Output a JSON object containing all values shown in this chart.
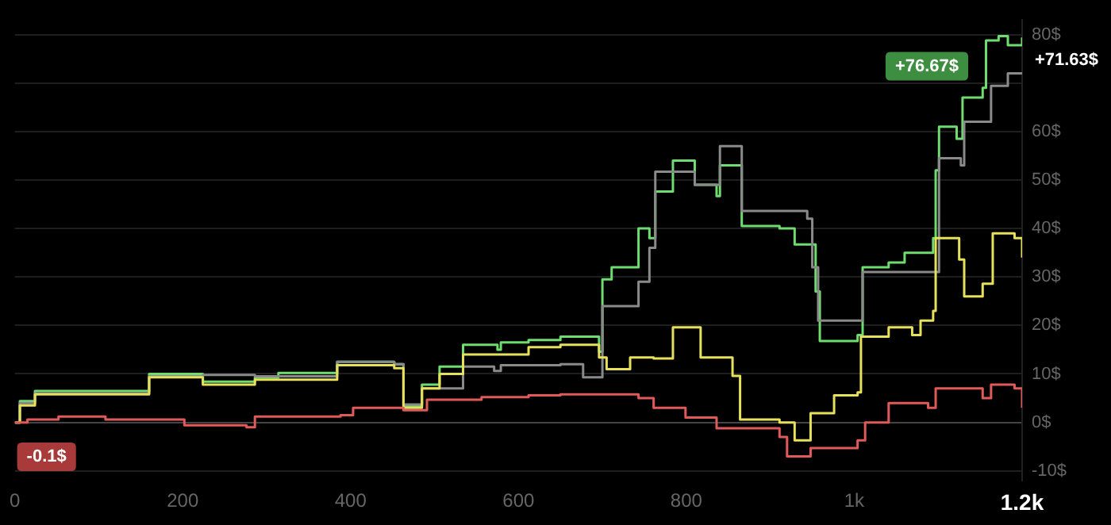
{
  "chart_data": {
    "type": "step",
    "series": [
      {
        "color": "#e05a5a",
        "x": [
          0,
          15,
          52,
          108,
          202,
          276,
          286,
          388,
          403,
          463,
          491,
          556,
          612,
          650,
          743,
          761,
          799,
          836,
          911,
          920,
          948,
          1004,
          1013,
          1041,
          1088,
          1097,
          1153,
          1163,
          1191,
          1200
        ],
        "values": [
          0,
          0.6,
          1.2,
          0.6,
          -0.6,
          -1,
          1.2,
          1.5,
          3,
          2.5,
          4.7,
          5.2,
          5.6,
          5.8,
          5,
          3,
          1,
          -1.2,
          -3,
          -7,
          -5.3,
          -3.7,
          0,
          4,
          3,
          7,
          5,
          7.8,
          7,
          3
        ]
      },
      {
        "color": "#e6e05a",
        "x": [
          0,
          6,
          24,
          160,
          224,
          286,
          384,
          452,
          463,
          485,
          506,
          534,
          612,
          650,
          696,
          705,
          733,
          761,
          784,
          817,
          855,
          864,
          911,
          929,
          948,
          976,
          1004,
          1008,
          1041,
          1069,
          1079,
          1094,
          1097,
          1125,
          1131,
          1153,
          1165,
          1191,
          1200
        ],
        "values": [
          0,
          3.5,
          5.8,
          9.3,
          7.8,
          8.8,
          11.8,
          11.2,
          3,
          7,
          10,
          14,
          15.5,
          16,
          13.4,
          11,
          13.4,
          13.2,
          19.6,
          13.4,
          9.6,
          0.6,
          0,
          -3.7,
          1.9,
          5.6,
          6.2,
          17.7,
          19.6,
          18,
          21,
          23,
          38,
          33.6,
          26,
          28.6,
          39,
          38,
          34
        ]
      },
      {
        "color": "#8a8a8a",
        "x": [
          0,
          6,
          24,
          160,
          224,
          286,
          384,
          452,
          463,
          485,
          534,
          571,
          579,
          650,
          677,
          700,
          743,
          756,
          763,
          810,
          840,
          866,
          944,
          950,
          957,
          1004,
          1010,
          1096,
          1101,
          1127,
          1131,
          1159,
          1163,
          1183,
          1200
        ],
        "values": [
          0,
          4,
          6,
          9.5,
          9.8,
          9.5,
          12.5,
          12,
          3.7,
          7,
          11.5,
          10.6,
          11.8,
          12,
          9.3,
          24,
          29,
          36,
          51.7,
          49,
          57,
          43.6,
          42,
          32,
          21,
          21,
          31,
          31,
          54.5,
          53,
          62,
          62,
          69.4,
          72,
          72
        ]
      },
      {
        "color": "#6fdc6f",
        "x": [
          0,
          6,
          24,
          160,
          224,
          286,
          314,
          384,
          452,
          463,
          485,
          506,
          534,
          575,
          579,
          612,
          650,
          696,
          700,
          711,
          743,
          756,
          763,
          784,
          810,
          836,
          840,
          866,
          911,
          929,
          954,
          959,
          1004,
          1010,
          1041,
          1060,
          1094,
          1097,
          1101,
          1122,
          1129,
          1153,
          1157,
          1172,
          1183,
          1200
        ],
        "values": [
          0,
          4.4,
          6.5,
          10,
          8.4,
          9.3,
          10.2,
          12.5,
          12,
          3.4,
          7.8,
          11.5,
          16,
          15,
          16.5,
          17,
          17.7,
          14.6,
          29.5,
          32,
          40,
          38,
          47.6,
          54,
          49,
          46.7,
          53,
          40.5,
          40,
          36.7,
          27,
          16.8,
          18,
          32,
          33,
          35,
          38,
          52,
          61,
          58.5,
          67,
          69,
          78.8,
          79.7,
          77.8,
          79.4
        ]
      }
    ],
    "xlim": [
      0,
      1200
    ],
    "xticks": [
      0,
      200,
      400,
      600,
      800,
      {
        "value": 1000,
        "label": "1k"
      },
      {
        "value": 1200,
        "label": "1.2k"
      }
    ],
    "ylim": [
      -12,
      83
    ],
    "yticks": [
      {
        "value": -10,
        "label": "-10$"
      },
      {
        "value": 0,
        "label": "0$"
      },
      {
        "value": 10,
        "label": "10$"
      },
      {
        "value": 20,
        "label": "20$"
      },
      {
        "value": 30,
        "label": "30$"
      },
      {
        "value": 40,
        "label": "40$"
      },
      {
        "value": 50,
        "label": "50$"
      },
      {
        "value": 60,
        "label": "60$"
      },
      {
        "value": 70,
        "label": null
      },
      {
        "value": 80,
        "label": "80$"
      }
    ],
    "grid": "y",
    "legend": false,
    "annotations": [
      "+76.67$",
      "+71.63$",
      "-0.1$"
    ]
  }
}
